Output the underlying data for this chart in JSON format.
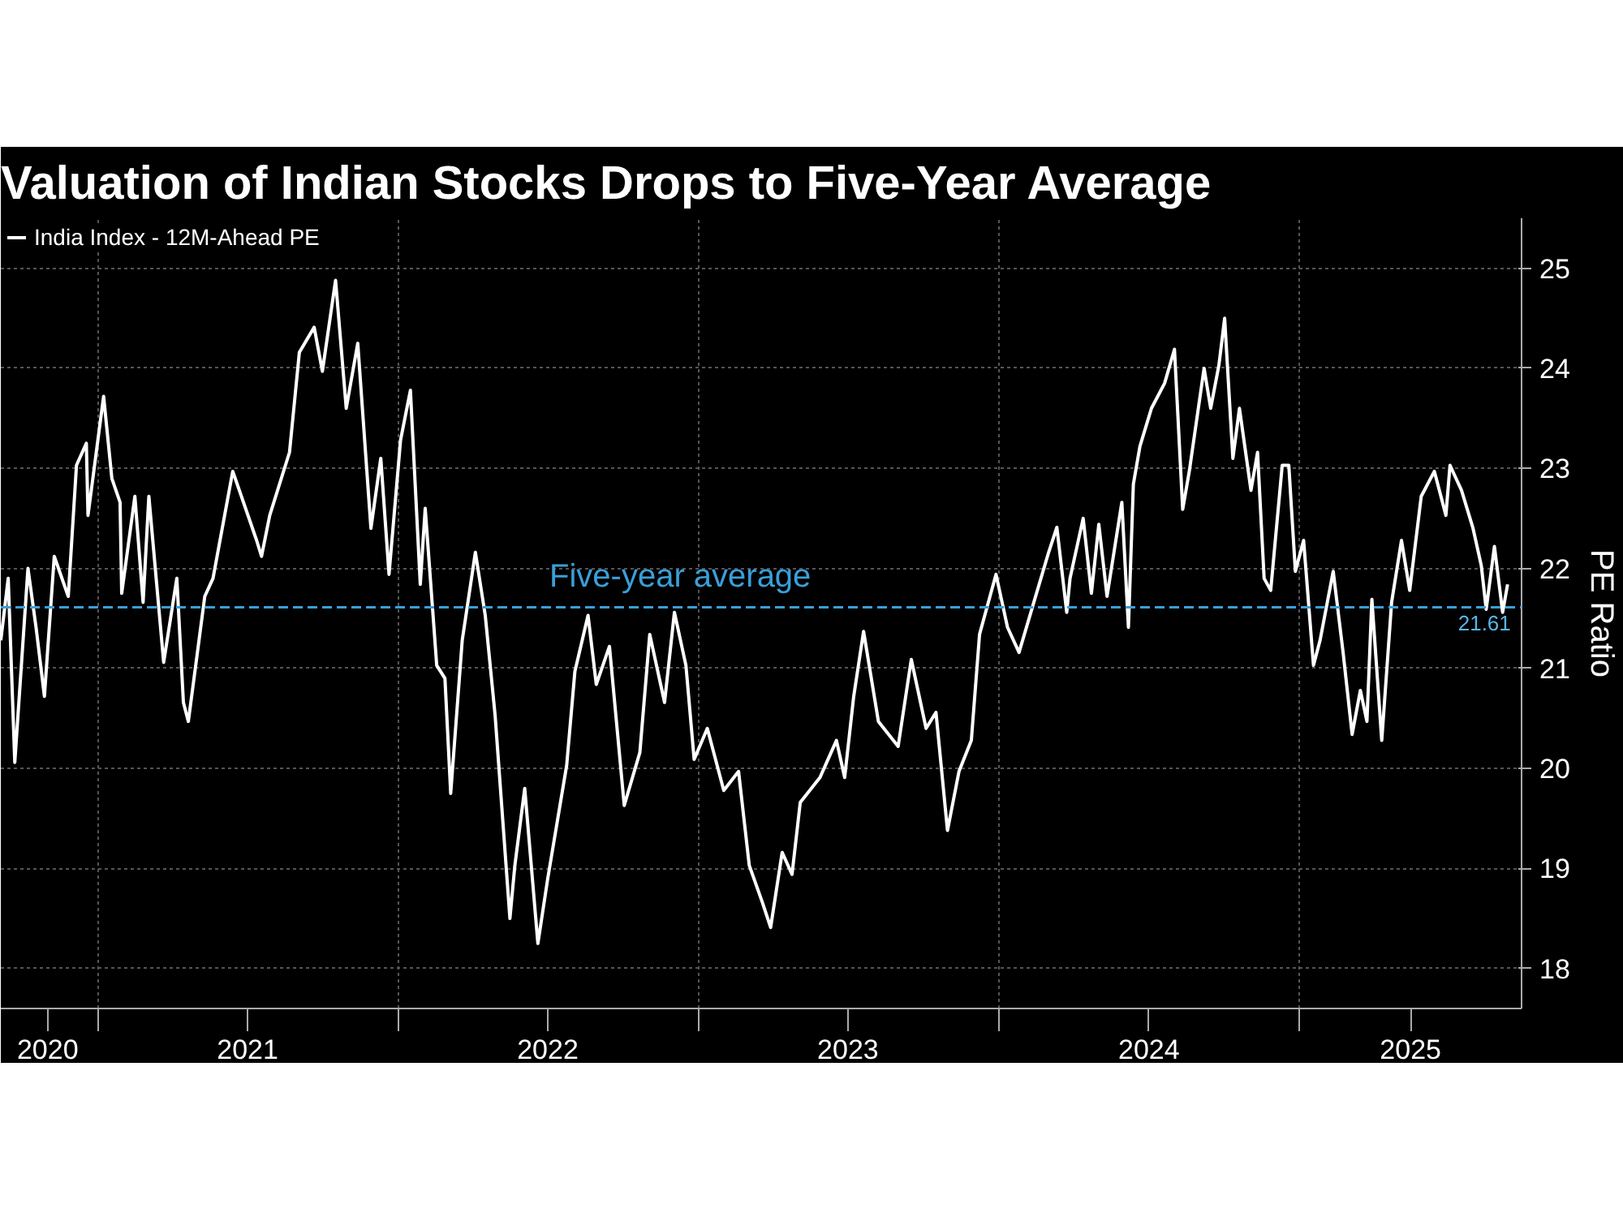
{
  "chart_data": {
    "type": "line",
    "title": "Valuation of Indian Stocks Drops to Five-Year Average",
    "ylabel": "PE Ratio",
    "x": [
      "2020-09-05",
      "2020-09-14",
      "2020-09-22",
      "2020-09-30",
      "2020-10-08",
      "2020-10-18",
      "2020-10-28",
      "2020-11-09",
      "2020-11-26",
      "2020-12-06",
      "2020-12-18",
      "2020-12-20",
      "2021-01-08",
      "2021-01-18",
      "2021-01-28",
      "2021-01-30",
      "2021-02-15",
      "2021-02-25",
      "2021-03-04",
      "2021-03-22",
      "2021-04-07",
      "2021-04-15",
      "2021-04-21",
      "2021-05-11",
      "2021-05-21",
      "2021-06-14",
      "2021-07-13",
      "2021-07-19",
      "2021-07-29",
      "2021-08-22",
      "2021-09-03",
      "2021-09-21",
      "2021-10-01",
      "2021-10-17",
      "2021-10-30",
      "2021-11-13",
      "2021-11-29",
      "2021-12-11",
      "2021-12-21",
      "2022-01-04",
      "2022-01-16",
      "2022-01-28",
      "2022-02-03",
      "2022-02-17",
      "2022-02-27",
      "2022-03-06",
      "2022-03-20",
      "2022-04-05",
      "2022-04-17",
      "2022-04-29",
      "2022-05-17",
      "2022-05-23",
      "2022-06-04",
      "2022-06-20",
      "2022-07-02",
      "2022-07-25",
      "2022-08-04",
      "2022-08-20",
      "2022-08-30",
      "2022-09-15",
      "2022-10-03",
      "2022-10-22",
      "2022-11-03",
      "2022-11-21",
      "2022-12-03",
      "2022-12-17",
      "2022-12-27",
      "2023-01-12",
      "2023-02-01",
      "2023-02-19",
      "2023-03-04",
      "2023-03-20",
      "2023-03-30",
      "2023-04-13",
      "2023-04-25",
      "2023-05-05",
      "2023-05-29",
      "2023-06-18",
      "2023-06-28",
      "2023-07-09",
      "2023-07-21",
      "2023-08-08",
      "2023-09-01",
      "2023-09-17",
      "2023-10-05",
      "2023-10-17",
      "2023-10-31",
      "2023-11-14",
      "2023-11-29",
      "2023-12-09",
      "2023-12-29",
      "2024-01-12",
      "2024-01-26",
      "2024-02-13",
      "2024-03-02",
      "2024-03-12",
      "2024-03-24",
      "2024-03-28",
      "2024-04-13",
      "2024-04-23",
      "2024-05-02",
      "2024-05-12",
      "2024-05-30",
      "2024-06-07",
      "2024-06-13",
      "2024-06-21",
      "2024-07-05",
      "2024-07-21",
      "2024-08-02",
      "2024-08-12",
      "2024-08-20",
      "2024-09-07",
      "2024-09-15",
      "2024-09-25",
      "2024-10-02",
      "2024-10-12",
      "2024-10-20",
      "2024-11-03",
      "2024-11-11",
      "2024-11-19",
      "2024-11-27",
      "2024-12-11",
      "2024-12-19",
      "2024-12-27",
      "2025-01-06",
      "2025-01-18",
      "2025-01-26",
      "2025-02-11",
      "2025-02-23",
      "2025-03-06",
      "2025-03-16",
      "2025-03-24",
      "2025-03-30",
      "2025-04-11",
      "2025-04-23",
      "2025-05-05",
      "2025-05-15",
      "2025-05-29",
      "2025-06-14",
      "2025-06-28",
      "2025-07-03",
      "2025-07-17",
      "2025-07-31",
      "2025-08-10",
      "2025-08-16",
      "2025-08-26",
      "2025-09-05",
      "2025-09-11"
    ],
    "series": [
      {
        "name": "India Index - 12M-Ahead PE",
        "color": "#ffffff",
        "values": [
          21.28,
          21.9,
          20.06,
          21.03,
          22.0,
          21.4,
          20.72,
          22.12,
          21.72,
          23.03,
          23.25,
          22.53,
          23.72,
          22.9,
          22.66,
          21.75,
          22.72,
          21.66,
          22.72,
          21.06,
          21.9,
          20.66,
          20.47,
          21.72,
          21.9,
          22.97,
          22.28,
          22.12,
          22.53,
          23.16,
          24.16,
          24.41,
          23.97,
          24.88,
          23.6,
          24.25,
          22.4,
          23.1,
          21.94,
          23.28,
          23.78,
          21.84,
          22.6,
          21.03,
          20.9,
          19.75,
          21.28,
          22.16,
          21.53,
          20.53,
          18.5,
          19.03,
          19.8,
          18.25,
          18.9,
          20.03,
          20.97,
          21.53,
          20.84,
          21.22,
          19.63,
          20.16,
          21.34,
          20.66,
          21.56,
          21.03,
          20.09,
          20.4,
          19.78,
          19.97,
          19.03,
          18.66,
          18.41,
          19.16,
          18.94,
          19.66,
          19.91,
          20.28,
          19.91,
          20.72,
          21.37,
          20.47,
          20.22,
          21.09,
          20.4,
          20.56,
          19.38,
          19.97,
          20.28,
          21.34,
          21.94,
          21.41,
          21.16,
          21.66,
          22.16,
          22.41,
          21.56,
          21.9,
          22.5,
          21.75,
          22.44,
          21.72,
          22.66,
          21.41,
          22.84,
          23.22,
          23.6,
          23.85,
          24.19,
          22.59,
          22.97,
          24.0,
          23.6,
          24.03,
          24.5,
          23.1,
          23.6,
          22.78,
          23.16,
          21.9,
          21.78,
          23.03,
          23.03,
          21.97,
          22.28,
          21.03,
          21.28,
          21.97,
          21.16,
          20.34,
          20.78,
          20.47,
          21.69,
          20.28,
          21.66,
          22.28,
          21.78,
          22.72,
          22.97,
          22.53,
          23.03,
          22.78,
          22.4,
          22.03,
          21.59,
          22.22,
          21.56,
          21.84
        ]
      }
    ],
    "xlim": [
      "2020-09-05",
      "2025-09-28"
    ],
    "xticks": [
      {
        "value": "2020-11-01",
        "label": "2020"
      },
      {
        "value": "2021-01-01",
        "label": null
      },
      {
        "value": "2021-07-02",
        "label": "2021"
      },
      {
        "value": "2022-01-01",
        "label": null
      },
      {
        "value": "2022-07-02",
        "label": "2022"
      },
      {
        "value": "2023-01-01",
        "label": null
      },
      {
        "value": "2023-07-02",
        "label": "2023"
      },
      {
        "value": "2024-01-01",
        "label": null
      },
      {
        "value": "2024-07-02",
        "label": "2024"
      },
      {
        "value": "2025-01-01",
        "label": null
      },
      {
        "value": "2025-05-16",
        "label": "2025"
      }
    ],
    "ylim": [
      17.6,
      25.5
    ],
    "yticks": [
      18,
      19,
      20,
      21,
      22,
      23,
      24,
      25
    ],
    "grid": true,
    "legend": "top left",
    "line_style": "solid",
    "ref_lines": [
      {
        "axis": "y",
        "value": 21.61,
        "label": "Five-year average",
        "color": "#3a9fd8",
        "line_style": "dashed"
      }
    ],
    "annotations": [
      {
        "text": "21.61",
        "x": "2025-09-11",
        "y": 21.61
      }
    ]
  }
}
